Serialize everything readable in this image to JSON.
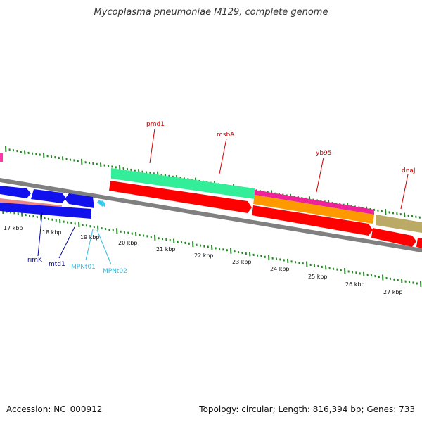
{
  "title": "Mycoplasma pneumoniae M129, complete genome",
  "footer": {
    "accession": "Accession: NC_000912",
    "summary": "Topology: circular; Length: 816,394 bp; Genes: 733"
  },
  "colors": {
    "label_red": "#cc0000",
    "label_navy": "#000099",
    "label_cyan": "#33bbdd",
    "tick_green": "#228822",
    "backbone": "#777777"
  },
  "kbp_ticks": [
    "17 kbp",
    "18 kbp",
    "19 kbp",
    "20 kbp",
    "21 kbp",
    "22 kbp",
    "23 kbp",
    "24 kbp",
    "25 kbp",
    "26 kbp",
    "27 kbp"
  ],
  "gene_labels": {
    "pmd1": "pmd1",
    "msbA": "msbA",
    "yb95": "yb95",
    "dnaJ": "dnaJ",
    "rimK": "rimK",
    "mtd1": "mtd1",
    "MPNt01": "MPNt01",
    "MPNt02": "MPNt02"
  }
}
